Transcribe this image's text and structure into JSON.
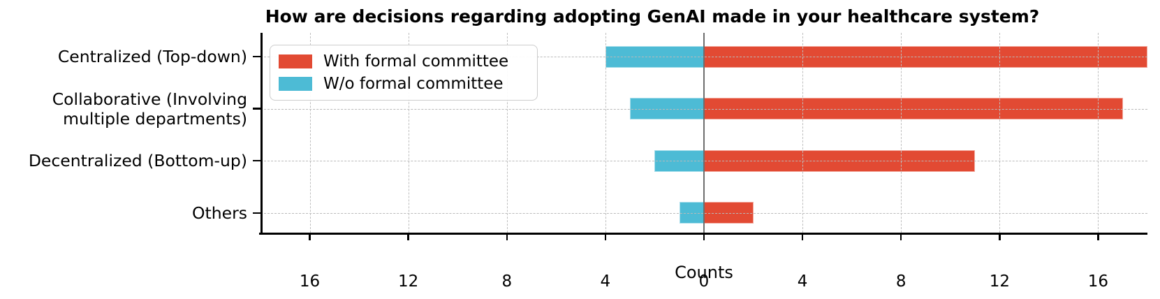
{
  "chart_data": {
    "type": "bar",
    "orientation": "diverging-horizontal",
    "title": "How are decisions regarding adopting GenAI made in your healthcare system?",
    "xlabel": "Counts",
    "categories": [
      "Centralized (Top-down)",
      "Collaborative (Involving\nmultiple departments)",
      "Decentralized (Bottom-up)",
      "Others"
    ],
    "series": [
      {
        "name": "With formal committee",
        "color": "#e24a33",
        "direction": "right",
        "values": [
          18,
          17,
          11,
          2
        ]
      },
      {
        "name": "W/o formal committee",
        "color": "#4dbbd5",
        "direction": "left",
        "values": [
          4,
          3,
          2,
          1
        ]
      }
    ],
    "xlim": [
      -18,
      18
    ],
    "xticks": [
      -16,
      -12,
      -8,
      -4,
      0,
      4,
      8,
      12,
      16
    ],
    "xtick_labels": [
      "16",
      "12",
      "8",
      "4",
      "0",
      "4",
      "8",
      "12",
      "16"
    ],
    "grid": true,
    "grid_color": "#bfbfbf",
    "zero_line_color": "#6e6e6e",
    "legend_position": "upper left"
  }
}
